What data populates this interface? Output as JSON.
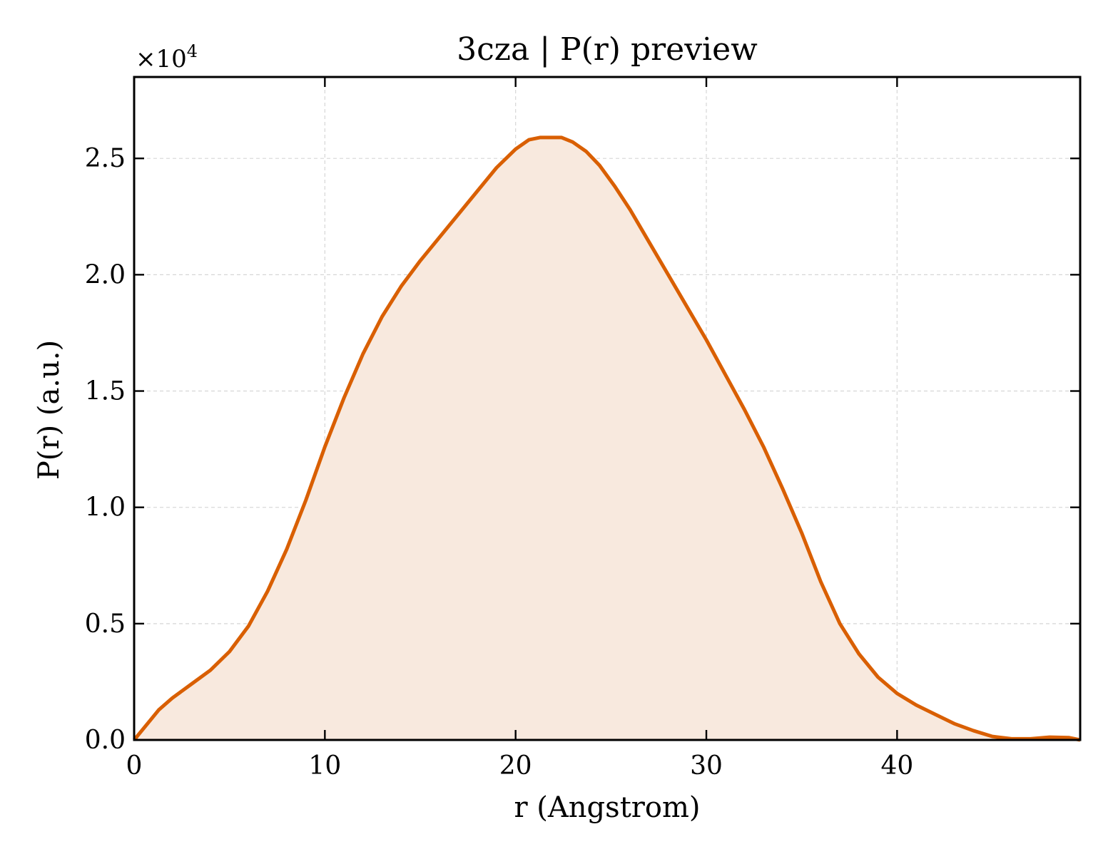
{
  "chart_data": {
    "type": "area",
    "title": "3cza | P(r) preview",
    "xlabel": "r (Angstrom)",
    "ylabel": "P(r) (a.u.)",
    "y_multiplier": "×10",
    "y_multiplier_exp": "4",
    "xlim": [
      0,
      49.6
    ],
    "ylim": [
      0,
      2.85
    ],
    "grid": true,
    "line_color": "#d95f02",
    "fill_color": "#f8e9de",
    "x_ticks": [
      {
        "value": 0,
        "label": "0"
      },
      {
        "value": 10,
        "label": "10"
      },
      {
        "value": 20,
        "label": "20"
      },
      {
        "value": 30,
        "label": "30"
      },
      {
        "value": 40,
        "label": "40"
      }
    ],
    "y_ticks": [
      {
        "value": 0,
        "label": "0.0"
      },
      {
        "value": 0.5,
        "label": "0.5"
      },
      {
        "value": 1.0,
        "label": "1.0"
      },
      {
        "value": 1.5,
        "label": "1.5"
      },
      {
        "value": 2.0,
        "label": "2.0"
      },
      {
        "value": 2.5,
        "label": "2.5"
      }
    ],
    "series": [
      {
        "x": [
          0,
          0.7,
          1.3,
          2.0,
          3.0,
          4.0,
          5.0,
          6.0,
          7.0,
          8.0,
          9.0,
          10.0,
          11.0,
          12.0,
          13.0,
          14.0,
          15.0,
          16.0,
          17.0,
          18.0,
          19.0,
          20.0,
          20.7,
          21.3,
          22.0,
          22.4,
          23.0,
          23.7,
          24.4,
          25.2,
          26.0,
          27.0,
          28.0,
          29.0,
          30.0,
          31.0,
          32.0,
          33.0,
          34.0,
          35.0,
          36.0,
          37.0,
          38.0,
          39.0,
          40.0,
          41.0,
          42.0,
          43.0,
          44.0,
          45.0,
          46.0,
          47.0,
          48.0,
          49.0,
          49.6
        ],
        "y": [
          0.0,
          0.07,
          0.13,
          0.18,
          0.24,
          0.3,
          0.38,
          0.49,
          0.64,
          0.82,
          1.03,
          1.26,
          1.47,
          1.66,
          1.82,
          1.95,
          2.06,
          2.16,
          2.26,
          2.36,
          2.46,
          2.54,
          2.58,
          2.59,
          2.59,
          2.59,
          2.57,
          2.53,
          2.47,
          2.38,
          2.28,
          2.14,
          2.0,
          1.86,
          1.72,
          1.57,
          1.42,
          1.26,
          1.08,
          0.89,
          0.68,
          0.5,
          0.37,
          0.27,
          0.2,
          0.15,
          0.11,
          0.07,
          0.04,
          0.015,
          0.005,
          0.005,
          0.012,
          0.01,
          0.0
        ]
      }
    ]
  }
}
